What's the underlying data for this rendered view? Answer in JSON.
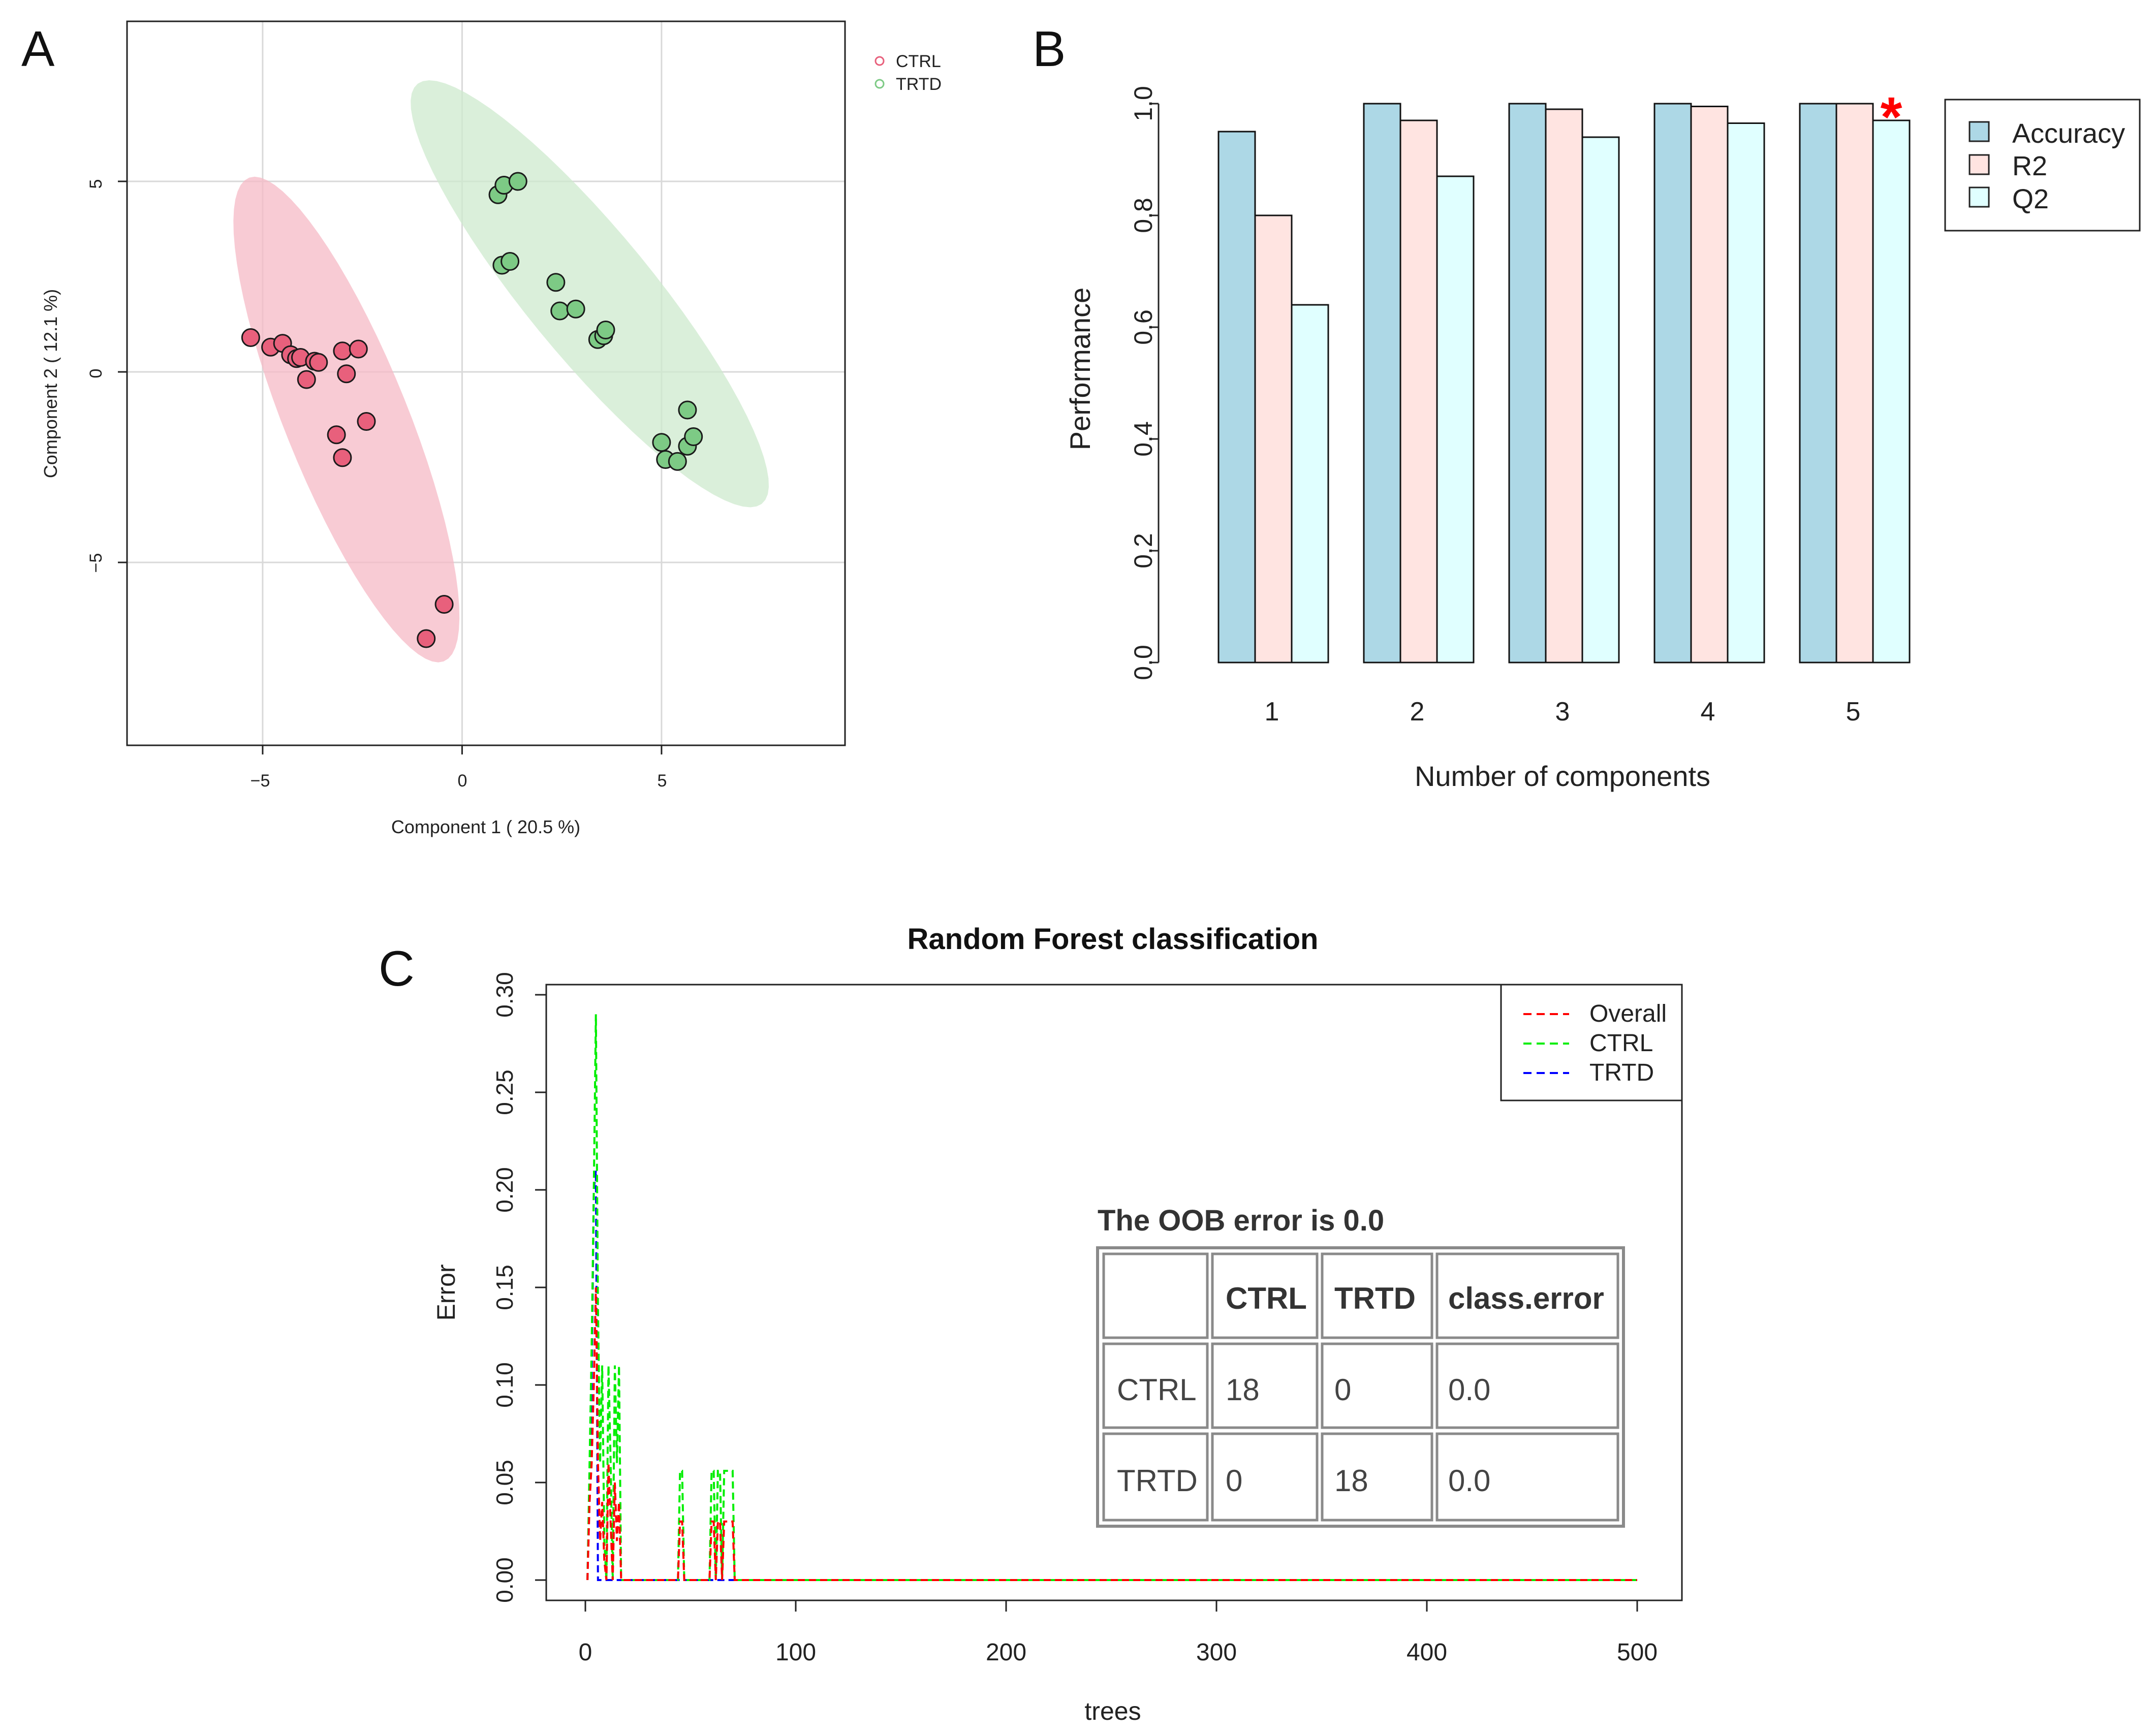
{
  "panel_labels": [
    "A",
    "B",
    "C"
  ],
  "chart_data": [
    {
      "panel": "A",
      "type": "scatter",
      "title": "",
      "xlabel": "Component 1 ( 20.5 %)",
      "ylabel": "Component 2 ( 12.1 %)",
      "xlim": [
        -8.4,
        9.6
      ],
      "ylim": [
        -9.8,
        9.2
      ],
      "xticks": [
        -5,
        0,
        5
      ],
      "xtick_labels": [
        "−5",
        "0",
        "5"
      ],
      "yticks": [
        -5,
        0,
        5
      ],
      "ytick_labels": [
        "−5",
        "0",
        "5"
      ],
      "grid": true,
      "legend": {
        "position": "top-right-outside",
        "entries": [
          "CTRL",
          "TRTD"
        ]
      },
      "series": [
        {
          "name": "CTRL",
          "color": "#e8607c",
          "ellipse_color": "#f5b9c6",
          "ellipse": {
            "center": [
              -2.9,
              -1.25
            ],
            "semi_axes": [
              6.8,
              1.55
            ],
            "angle_deg": -69
          },
          "points": [
            [
              -5.3,
              0.9
            ],
            [
              -4.8,
              0.65
            ],
            [
              -4.5,
              0.75
            ],
            [
              -4.3,
              0.45
            ],
            [
              -4.15,
              0.35
            ],
            [
              -4.05,
              0.38
            ],
            [
              -3.9,
              -0.2
            ],
            [
              -3.7,
              0.28
            ],
            [
              -3.6,
              0.25
            ],
            [
              -3.0,
              0.55
            ],
            [
              -2.9,
              -0.05
            ],
            [
              -2.6,
              0.6
            ],
            [
              -2.4,
              -1.3
            ],
            [
              -3.15,
              -1.65
            ],
            [
              -3.0,
              -2.25
            ],
            [
              -0.9,
              -7.0
            ],
            [
              -0.45,
              -6.1
            ]
          ]
        },
        {
          "name": "TRTD",
          "color": "#7dca85",
          "ellipse_color": "#cde9cd",
          "ellipse": {
            "center": [
              3.2,
              2.05
            ],
            "semi_axes": [
              7.0,
              1.6
            ],
            "angle_deg": -52
          },
          "points": [
            [
              0.9,
              4.65
            ],
            [
              1.05,
              4.9
            ],
            [
              1.4,
              5.0
            ],
            [
              1.0,
              2.8
            ],
            [
              1.2,
              2.9
            ],
            [
              2.35,
              2.35
            ],
            [
              2.45,
              1.6
            ],
            [
              2.85,
              1.65
            ],
            [
              3.4,
              0.85
            ],
            [
              3.55,
              0.95
            ],
            [
              3.6,
              1.1
            ],
            [
              5.0,
              -1.85
            ],
            [
              5.1,
              -2.3
            ],
            [
              5.4,
              -2.35
            ],
            [
              5.65,
              -1.95
            ],
            [
              5.65,
              -1.0
            ],
            [
              5.8,
              -1.7
            ]
          ]
        }
      ]
    },
    {
      "panel": "B",
      "type": "bar",
      "title": "",
      "xlabel": "Number of components",
      "ylabel": "Performance",
      "categories": [
        "1",
        "2",
        "3",
        "4",
        "5"
      ],
      "ylim": [
        0,
        1.0
      ],
      "yticks": [
        0.0,
        0.2,
        0.4,
        0.6,
        0.8,
        1.0
      ],
      "ytick_labels": [
        "0.0",
        "0.2",
        "0.4",
        "0.6",
        "0.8",
        "1.0"
      ],
      "legend": {
        "position": "top-right-outside"
      },
      "series": [
        {
          "name": "Accuracy",
          "color": "#add8e6",
          "values": [
            0.95,
            1.0,
            1.0,
            1.0,
            1.0
          ]
        },
        {
          "name": "R2",
          "color": "#ffe4e1",
          "values": [
            0.8,
            0.97,
            0.99,
            0.995,
            1.0
          ]
        },
        {
          "name": "Q2",
          "color": "#e0ffff",
          "values": [
            0.64,
            0.87,
            0.94,
            0.965,
            0.97
          ]
        }
      ],
      "annotation": {
        "text": "*",
        "category": "5",
        "color": "#ff0000"
      }
    },
    {
      "panel": "C",
      "type": "line",
      "title": "Random Forest classification",
      "xlabel": "trees",
      "ylabel": "Error",
      "xlim": [
        0,
        500
      ],
      "ylim": [
        0,
        0.3
      ],
      "xticks": [
        0,
        100,
        200,
        300,
        400,
        500
      ],
      "xtick_labels": [
        "0",
        "100",
        "200",
        "300",
        "400",
        "500"
      ],
      "yticks": [
        0.0,
        0.05,
        0.1,
        0.15,
        0.2,
        0.25,
        0.3
      ],
      "ytick_labels": [
        "0.00",
        "0.05",
        "0.10",
        "0.15",
        "0.20",
        "0.25",
        "0.30"
      ],
      "legend": {
        "position": "top-right"
      },
      "series": [
        {
          "name": "Overall",
          "color": "#ff0000",
          "dash": "dashed",
          "x": [
            1,
            2,
            3,
            4,
            5,
            6,
            7,
            8,
            9,
            10,
            11,
            12,
            13,
            14,
            15,
            16,
            17,
            18,
            19,
            20,
            44,
            45,
            46,
            47,
            59,
            60,
            61,
            62,
            63,
            64,
            65,
            66,
            67,
            68,
            69,
            70,
            71,
            500
          ],
          "y": [
            0,
            0.04,
            0.06,
            0.1,
            0.15,
            0.06,
            0.02,
            0.04,
            0.01,
            0.0,
            0.06,
            0.03,
            0.0,
            0.05,
            0.02,
            0.04,
            0.0,
            0.0,
            0.0,
            0.0,
            0.0,
            0.03,
            0.03,
            0.0,
            0.0,
            0.03,
            0.03,
            0.0,
            0.03,
            0.03,
            0.0,
            0.03,
            0.03,
            0.03,
            0.03,
            0.03,
            0.0,
            0.0
          ]
        },
        {
          "name": "CTRL",
          "color": "#00ee00",
          "dash": "dashed",
          "x": [
            1,
            2,
            3,
            4,
            5,
            6,
            7,
            8,
            9,
            10,
            11,
            12,
            13,
            14,
            15,
            16,
            17,
            18,
            19,
            20,
            44,
            45,
            46,
            47,
            59,
            60,
            61,
            62,
            63,
            64,
            65,
            66,
            67,
            68,
            69,
            70,
            71,
            500
          ],
          "y": [
            0,
            0.06,
            0.12,
            0.2,
            0.29,
            0.14,
            0.06,
            0.11,
            0.02,
            0.0,
            0.11,
            0.06,
            0.0,
            0.11,
            0.06,
            0.11,
            0.0,
            0.0,
            0.0,
            0.0,
            0.0,
            0.056,
            0.056,
            0.0,
            0.0,
            0.056,
            0.056,
            0.0,
            0.056,
            0.056,
            0.0,
            0.056,
            0.056,
            0.056,
            0.056,
            0.056,
            0.0,
            0.0
          ]
        },
        {
          "name": "TRTD",
          "color": "#0000ff",
          "dash": "dashed",
          "x": [
            1,
            2,
            3,
            4,
            5,
            6,
            7,
            8,
            9,
            10,
            500
          ],
          "y": [
            0,
            0.05,
            0.1,
            0.2,
            0.21,
            0.0,
            0.0,
            0.0,
            0.0,
            0.0,
            0.0
          ]
        }
      ],
      "inset_table": {
        "title": "The OOB error is 0.0",
        "header": [
          "",
          "CTRL",
          "TRTD",
          "class.error"
        ],
        "rows": [
          [
            "CTRL",
            "18",
            "0",
            "0.0"
          ],
          [
            "TRTD",
            "0",
            "18",
            "0.0"
          ]
        ]
      }
    }
  ]
}
